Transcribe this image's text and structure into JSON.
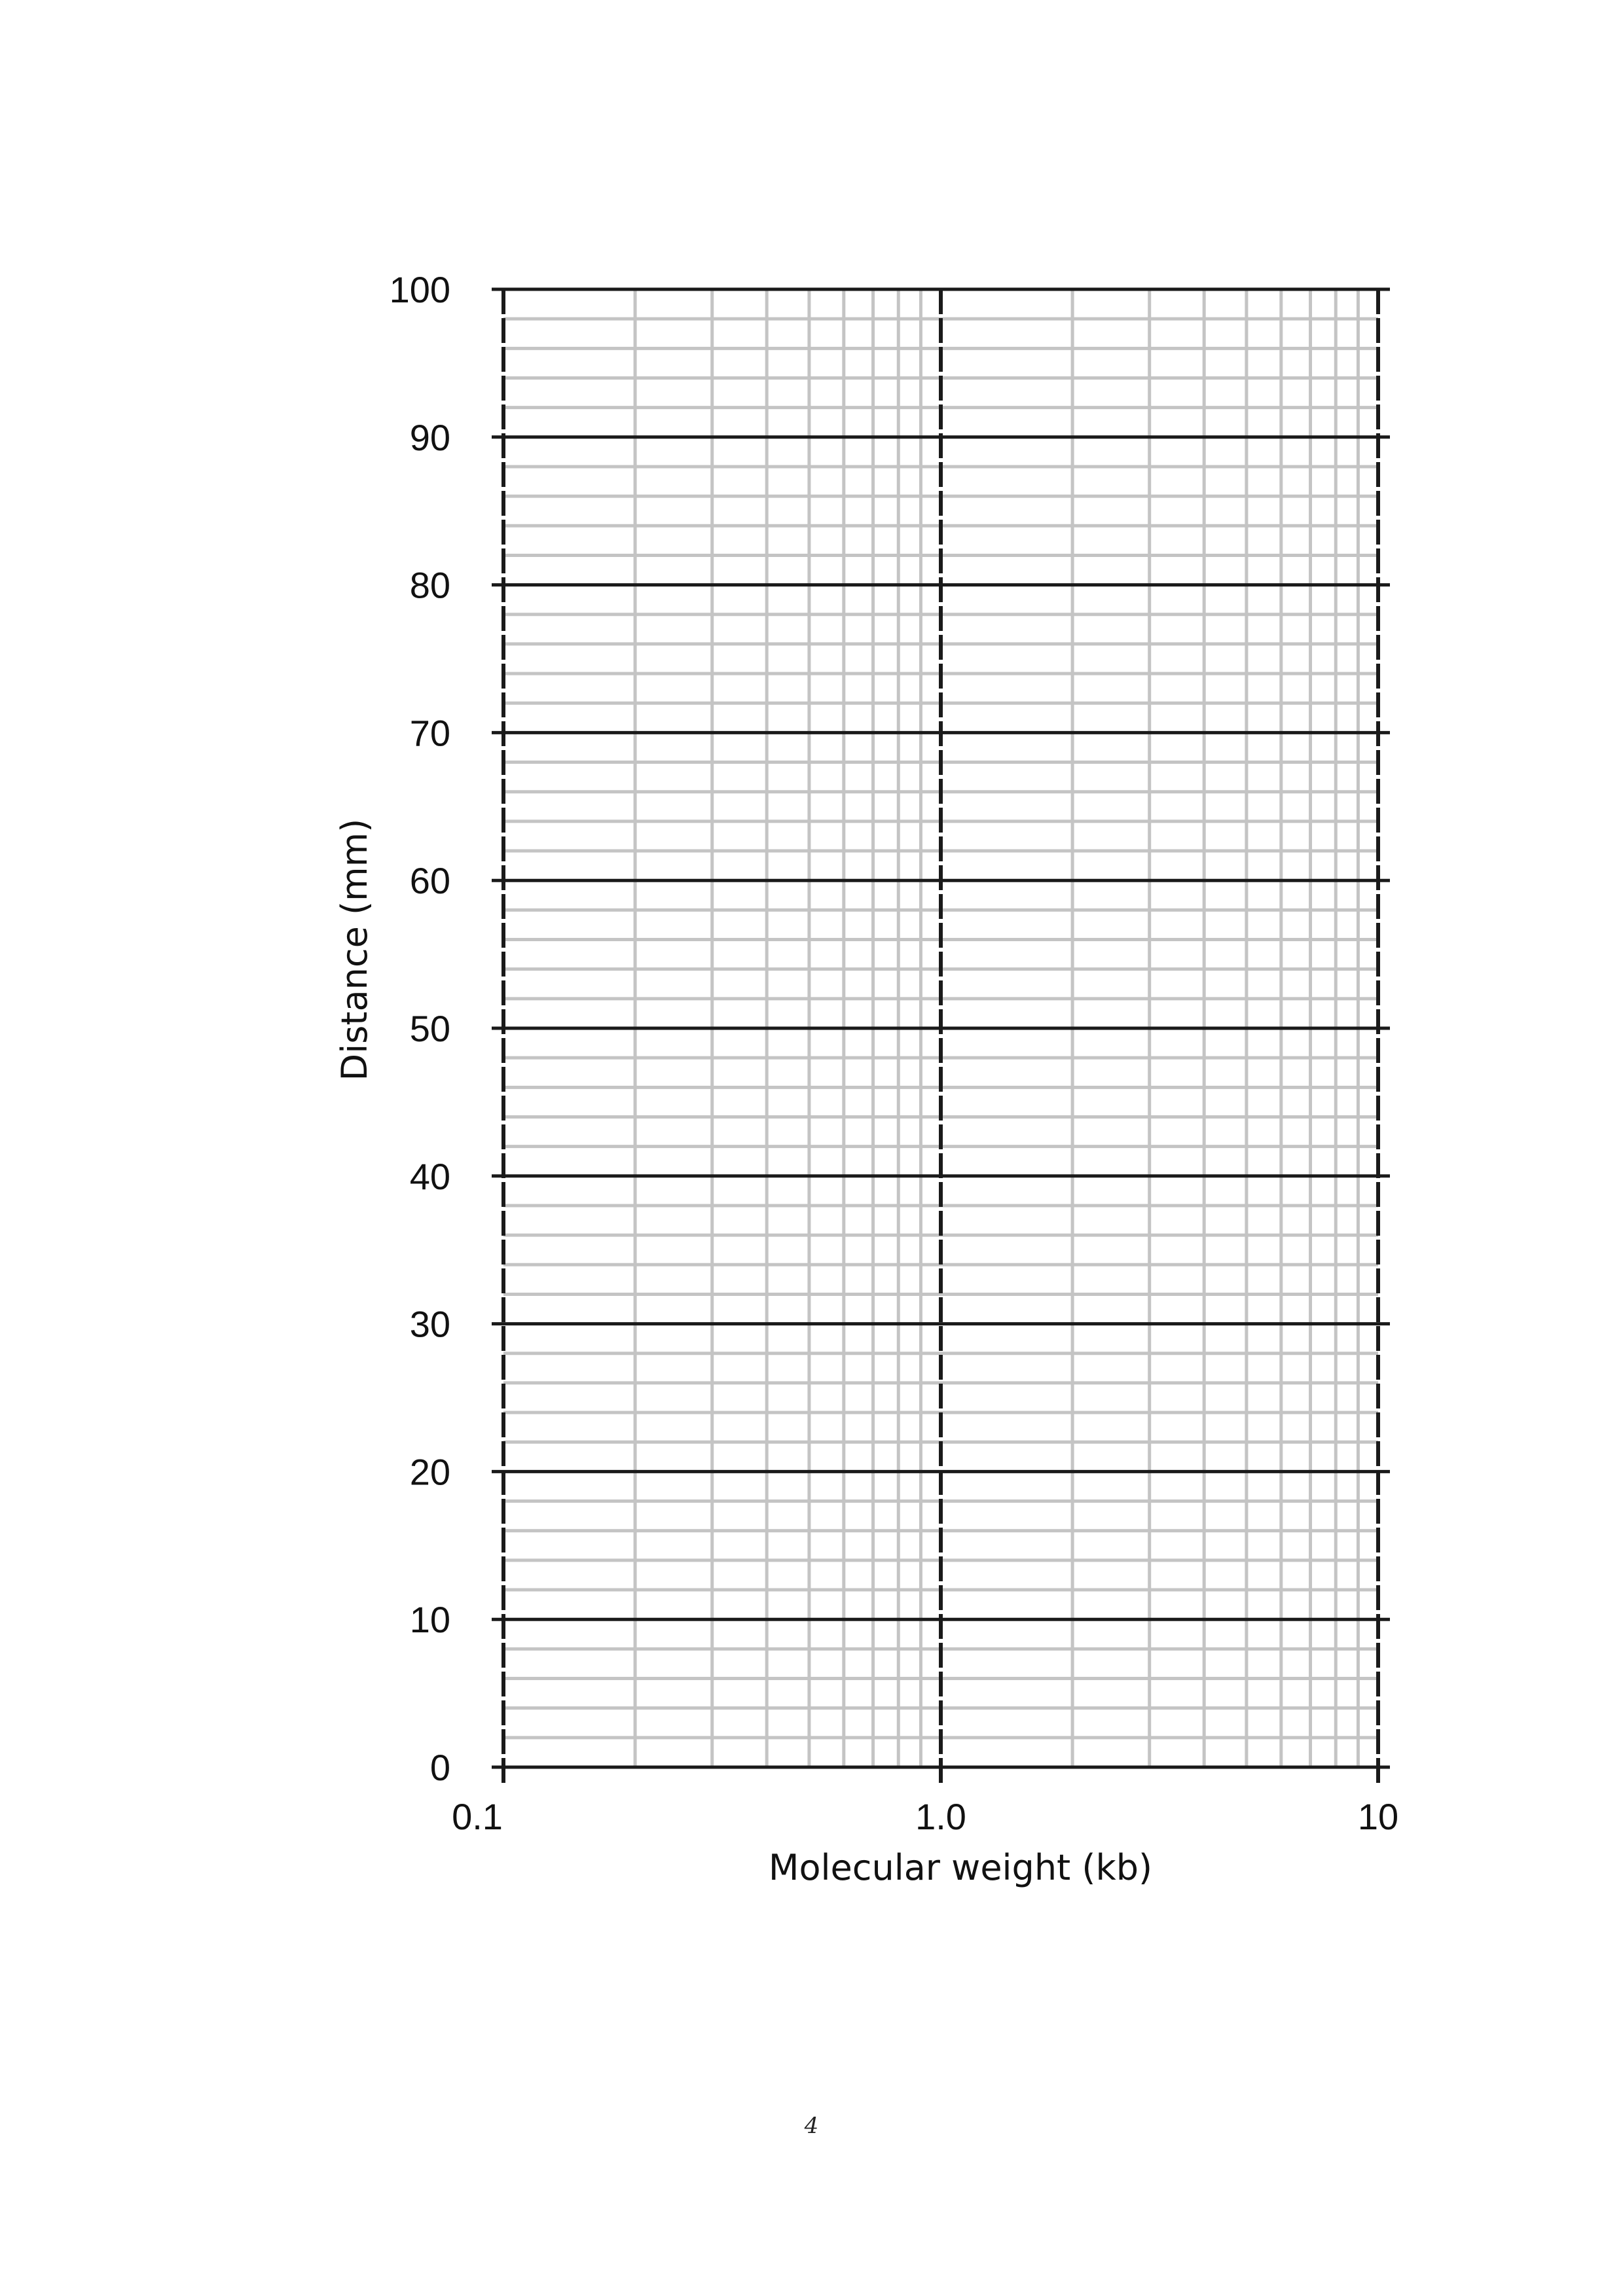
{
  "page": {
    "page_number": "4"
  },
  "chart_data": {
    "type": "scatter",
    "title": "",
    "xlabel": "Molecular weight (kb)",
    "ylabel": "Distance (mm)",
    "x_scale": "log",
    "xlim": [
      0.1,
      10
    ],
    "ylim": [
      0,
      100
    ],
    "x_ticks": [
      0.1,
      1.0,
      10
    ],
    "x_tick_labels": [
      "0.1",
      "1.0",
      "10"
    ],
    "y_ticks": [
      0,
      10,
      20,
      30,
      40,
      50,
      60,
      70,
      80,
      90,
      100
    ],
    "y_tick_labels": [
      "0",
      "10",
      "20",
      "30",
      "40",
      "50",
      "60",
      "70",
      "80",
      "90",
      "100"
    ],
    "y_minor_step": 2,
    "x_minor": [
      0.2,
      0.3,
      0.4,
      0.5,
      0.6,
      0.7,
      0.8,
      0.9,
      2,
      3,
      4,
      5,
      6,
      7,
      8,
      9
    ],
    "grid": true,
    "series": [],
    "colors": {
      "major_grid": "#1a1a1a",
      "minor_grid": "#c4c4c4"
    }
  }
}
